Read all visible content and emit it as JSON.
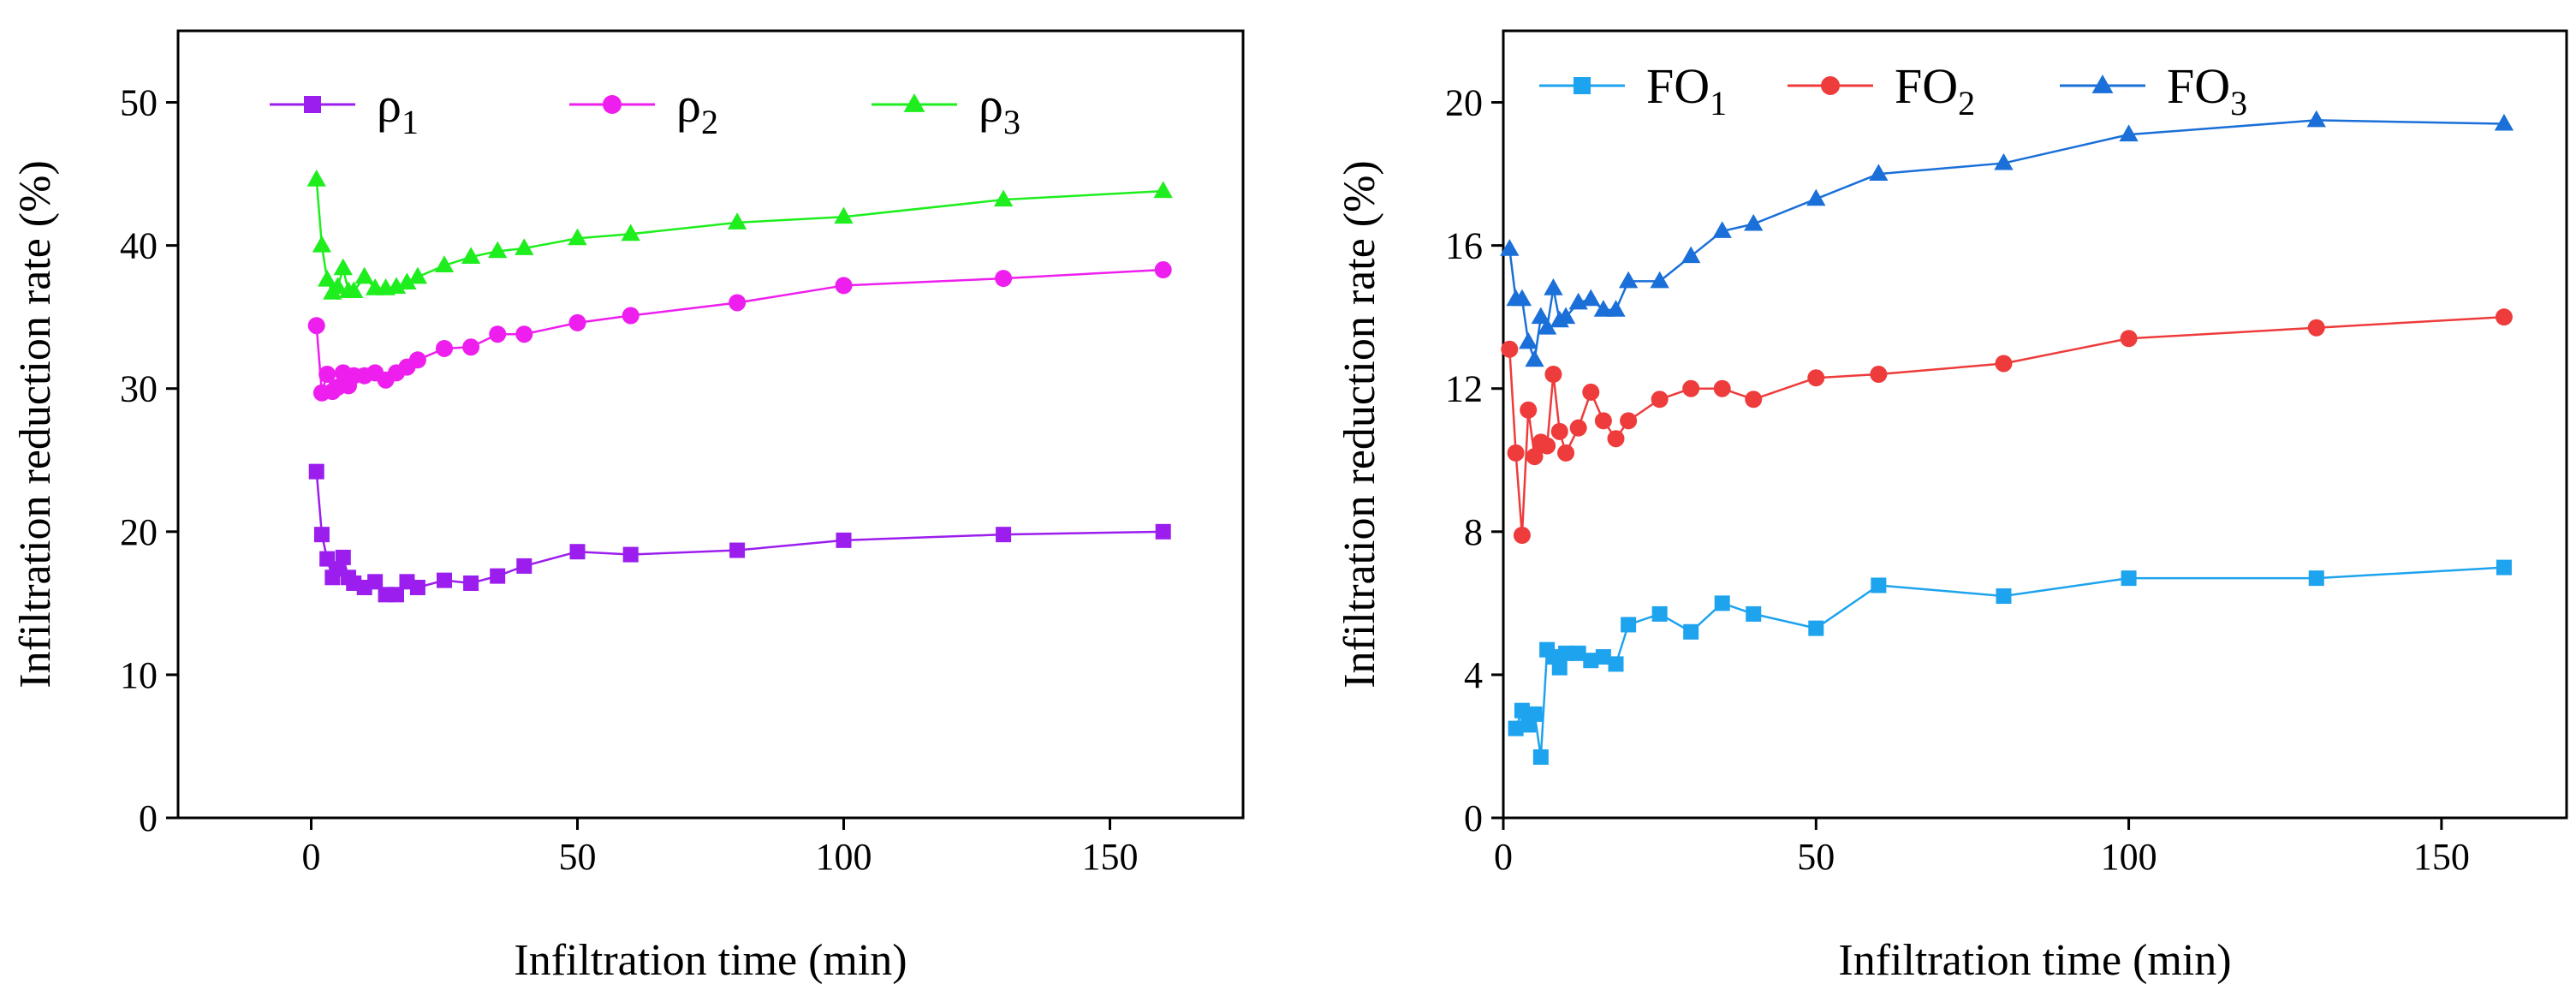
{
  "chart_data": [
    {
      "type": "line",
      "xlabel": "Infiltration time (min)",
      "ylabel": "Infiltration reduction rate (%)",
      "xlim": [
        -25,
        175
      ],
      "ylim": [
        0,
        55
      ],
      "xticks": [
        0,
        50,
        100,
        150
      ],
      "yticks": [
        0,
        10,
        20,
        30,
        40,
        50
      ],
      "xtick_labels": [
        "0",
        "50",
        "100",
        "150"
      ],
      "ytick_labels": [
        "0",
        "10",
        "20",
        "30",
        "40",
        "50"
      ],
      "legend_position": "top",
      "series": [
        {
          "name": "ρ1",
          "label_base": "ρ",
          "label_sub": "1",
          "color": "#9b1eee",
          "marker": "square",
          "x": [
            1,
            2,
            3,
            4,
            5,
            6,
            7,
            8,
            10,
            12,
            14,
            16,
            18,
            20,
            25,
            30,
            35,
            40,
            50,
            60,
            80,
            100,
            130,
            160
          ],
          "y": [
            24.2,
            19.8,
            18.1,
            16.8,
            17.4,
            18.2,
            16.8,
            16.4,
            16.1,
            16.5,
            15.6,
            15.6,
            16.5,
            16.1,
            16.6,
            16.4,
            16.9,
            17.6,
            18.6,
            18.4,
            18.7,
            19.4,
            19.8,
            20.0
          ]
        },
        {
          "name": "ρ2",
          "label_base": "ρ",
          "label_sub": "2",
          "color": "#ee1eee",
          "marker": "circle",
          "x": [
            1,
            2,
            3,
            4,
            5,
            6,
            7,
            8,
            10,
            12,
            14,
            16,
            18,
            20,
            25,
            30,
            35,
            40,
            50,
            60,
            80,
            100,
            130,
            160
          ],
          "y": [
            34.4,
            29.7,
            31.0,
            29.8,
            30.1,
            31.1,
            30.2,
            30.9,
            30.9,
            31.1,
            30.6,
            31.1,
            31.5,
            32.0,
            32.8,
            32.9,
            33.8,
            33.8,
            34.6,
            35.1,
            36.0,
            37.2,
            37.7,
            38.3
          ]
        },
        {
          "name": "ρ3",
          "label_base": "ρ",
          "label_sub": "3",
          "color": "#1eee1e",
          "marker": "triangle",
          "x": [
            1,
            2,
            3,
            4,
            5,
            6,
            7,
            8,
            10,
            12,
            14,
            16,
            18,
            20,
            25,
            30,
            35,
            40,
            50,
            60,
            80,
            100,
            130,
            160
          ],
          "y": [
            44.6,
            40.0,
            37.6,
            36.7,
            37.1,
            38.4,
            36.8,
            36.8,
            37.8,
            37.0,
            37.0,
            37.1,
            37.4,
            37.8,
            38.6,
            39.2,
            39.6,
            39.8,
            40.5,
            40.8,
            41.6,
            42.0,
            43.2,
            43.8
          ]
        }
      ]
    },
    {
      "type": "line",
      "xlabel": "Infiltration time (min)",
      "ylabel": "Infiltration reduction rate (%)",
      "xlim": [
        0,
        170
      ],
      "ylim": [
        0,
        22
      ],
      "xticks": [
        0,
        50,
        100,
        150
      ],
      "yticks": [
        0,
        4,
        8,
        12,
        16,
        20
      ],
      "xtick_labels": [
        "0",
        "50",
        "100",
        "150"
      ],
      "ytick_labels": [
        "0",
        "4",
        "8",
        "12",
        "16",
        "20"
      ],
      "legend_position": "top",
      "series": [
        {
          "name": "FO1",
          "label_base": "FO",
          "label_sub": "1",
          "color": "#1ea3ee",
          "marker": "square",
          "x": [
            2,
            3,
            4,
            5,
            6,
            7,
            8,
            9,
            10,
            12,
            14,
            16,
            18,
            20,
            25,
            30,
            35,
            40,
            50,
            60,
            80,
            100,
            130,
            160
          ],
          "y": [
            2.5,
            3.0,
            2.6,
            2.9,
            1.7,
            4.7,
            4.5,
            4.2,
            4.6,
            4.6,
            4.4,
            4.5,
            4.3,
            5.4,
            5.7,
            5.2,
            6.0,
            5.7,
            5.3,
            6.5,
            6.2,
            6.7,
            6.7,
            7.0
          ]
        },
        {
          "name": "FO2",
          "label_base": "FO",
          "label_sub": "2",
          "color": "#ee3b3b",
          "marker": "circle",
          "x": [
            1,
            2,
            3,
            4,
            5,
            6,
            7,
            8,
            9,
            10,
            12,
            14,
            16,
            18,
            20,
            25,
            30,
            35,
            40,
            50,
            60,
            80,
            100,
            130,
            160
          ],
          "y": [
            13.1,
            10.2,
            7.9,
            11.4,
            10.1,
            10.5,
            10.4,
            12.4,
            10.8,
            10.2,
            10.9,
            11.9,
            11.1,
            10.6,
            11.1,
            11.7,
            12.0,
            12.0,
            11.7,
            12.3,
            12.4,
            12.7,
            13.4,
            13.7,
            14.0
          ]
        },
        {
          "name": "FO3",
          "label_base": "FO",
          "label_sub": "3",
          "color": "#1a6fd8",
          "marker": "triangle",
          "x": [
            1,
            2,
            3,
            4,
            5,
            6,
            7,
            8,
            9,
            10,
            12,
            14,
            16,
            18,
            20,
            25,
            30,
            35,
            40,
            50,
            60,
            80,
            100,
            130,
            160
          ],
          "y": [
            15.9,
            14.5,
            14.5,
            13.3,
            12.8,
            14.0,
            13.7,
            14.8,
            13.9,
            14.0,
            14.4,
            14.5,
            14.2,
            14.2,
            15.0,
            15.0,
            15.7,
            16.4,
            16.6,
            17.3,
            18.0,
            18.3,
            19.1,
            19.5,
            19.4
          ]
        }
      ]
    }
  ]
}
